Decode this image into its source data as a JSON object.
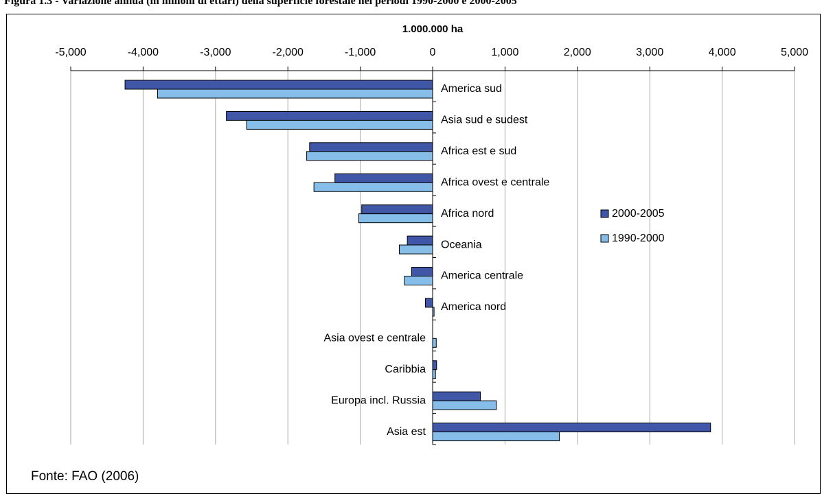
{
  "figure_title": "Figura 1.3 - Variazione annua (in milioni di ettari) della superficie forestale nei periodi 1990-2000 e 2000-2005",
  "source": "Fonte: FAO (2006)",
  "colors": {
    "series_2000_2005": "#3f57a6",
    "series_1990_2000": "#87bde9",
    "grid": "#aaaaaa",
    "axis": "#000000"
  },
  "chart_data": {
    "type": "bar",
    "orientation": "horizontal",
    "title": "1.000.000 ha",
    "xlabel": "",
    "ylabel": "",
    "xlim": [
      -5000,
      5000
    ],
    "x_ticks": [
      -5000,
      -4000,
      -3000,
      -2000,
      -1000,
      0,
      1000,
      2000,
      3000,
      4000,
      5000
    ],
    "x_tick_labels": [
      "-5,000",
      "-4,000",
      "-3,000",
      "-2,000",
      "-1,000",
      "0",
      "1,000",
      "2,000",
      "3,000",
      "4,000",
      "5,000"
    ],
    "x_axis_position": "top",
    "grid": "vertical",
    "legend": "right",
    "categories": [
      "America sud",
      "Asia sud e sudest",
      "Africa est e sud",
      "Africa ovest e centrale",
      "Africa nord",
      "Oceania",
      "America centrale",
      "America nord",
      "Asia ovest e centrale",
      "Caribbia",
      "Europa incl. Russia",
      "Asia est"
    ],
    "series": [
      {
        "name": "2000-2005",
        "values": [
          -4250,
          -2850,
          -1700,
          -1350,
          -980,
          -350,
          -290,
          -100,
          0,
          55,
          660,
          3840
        ]
      },
      {
        "name": "1990-2000",
        "values": [
          -3800,
          -2570,
          -1740,
          -1640,
          -1020,
          -460,
          -390,
          20,
          50,
          40,
          880,
          1750
        ]
      }
    ]
  }
}
